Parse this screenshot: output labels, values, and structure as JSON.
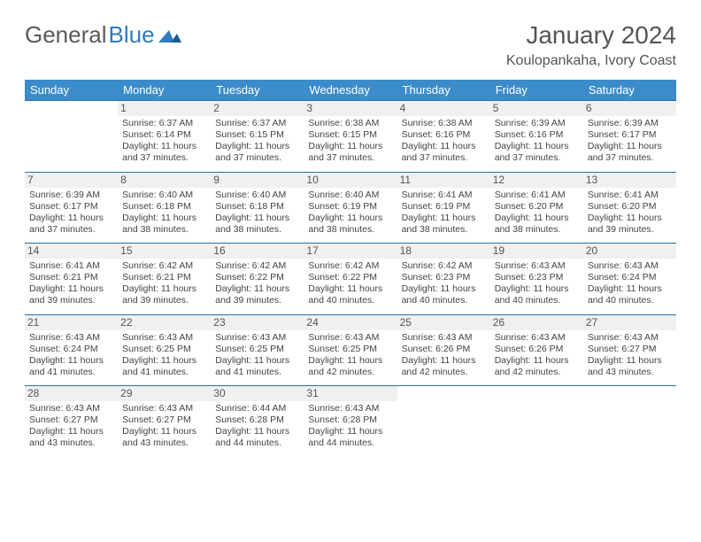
{
  "logo": {
    "text1": "General",
    "text2": "Blue"
  },
  "header": {
    "month": "January 2024",
    "location": "Koulopankaha, Ivory Coast"
  },
  "colors": {
    "header_bg": "#3b8ccb",
    "header_text": "#ffffff",
    "row_border": "#2f6fa8",
    "daynum_bg": "#eef0f1",
    "logo_gray": "#5a5a5a",
    "logo_blue": "#2f7cc0"
  },
  "daysOfWeek": [
    "Sunday",
    "Monday",
    "Tuesday",
    "Wednesday",
    "Thursday",
    "Friday",
    "Saturday"
  ],
  "weeks": [
    [
      null,
      {
        "n": "1",
        "sr": "6:37 AM",
        "ss": "6:14 PM",
        "dl": "11 hours and 37 minutes."
      },
      {
        "n": "2",
        "sr": "6:37 AM",
        "ss": "6:15 PM",
        "dl": "11 hours and 37 minutes."
      },
      {
        "n": "3",
        "sr": "6:38 AM",
        "ss": "6:15 PM",
        "dl": "11 hours and 37 minutes."
      },
      {
        "n": "4",
        "sr": "6:38 AM",
        "ss": "6:16 PM",
        "dl": "11 hours and 37 minutes."
      },
      {
        "n": "5",
        "sr": "6:39 AM",
        "ss": "6:16 PM",
        "dl": "11 hours and 37 minutes."
      },
      {
        "n": "6",
        "sr": "6:39 AM",
        "ss": "6:17 PM",
        "dl": "11 hours and 37 minutes."
      }
    ],
    [
      {
        "n": "7",
        "sr": "6:39 AM",
        "ss": "6:17 PM",
        "dl": "11 hours and 37 minutes."
      },
      {
        "n": "8",
        "sr": "6:40 AM",
        "ss": "6:18 PM",
        "dl": "11 hours and 38 minutes."
      },
      {
        "n": "9",
        "sr": "6:40 AM",
        "ss": "6:18 PM",
        "dl": "11 hours and 38 minutes."
      },
      {
        "n": "10",
        "sr": "6:40 AM",
        "ss": "6:19 PM",
        "dl": "11 hours and 38 minutes."
      },
      {
        "n": "11",
        "sr": "6:41 AM",
        "ss": "6:19 PM",
        "dl": "11 hours and 38 minutes."
      },
      {
        "n": "12",
        "sr": "6:41 AM",
        "ss": "6:20 PM",
        "dl": "11 hours and 38 minutes."
      },
      {
        "n": "13",
        "sr": "6:41 AM",
        "ss": "6:20 PM",
        "dl": "11 hours and 39 minutes."
      }
    ],
    [
      {
        "n": "14",
        "sr": "6:41 AM",
        "ss": "6:21 PM",
        "dl": "11 hours and 39 minutes."
      },
      {
        "n": "15",
        "sr": "6:42 AM",
        "ss": "6:21 PM",
        "dl": "11 hours and 39 minutes."
      },
      {
        "n": "16",
        "sr": "6:42 AM",
        "ss": "6:22 PM",
        "dl": "11 hours and 39 minutes."
      },
      {
        "n": "17",
        "sr": "6:42 AM",
        "ss": "6:22 PM",
        "dl": "11 hours and 40 minutes."
      },
      {
        "n": "18",
        "sr": "6:42 AM",
        "ss": "6:23 PM",
        "dl": "11 hours and 40 minutes."
      },
      {
        "n": "19",
        "sr": "6:43 AM",
        "ss": "6:23 PM",
        "dl": "11 hours and 40 minutes."
      },
      {
        "n": "20",
        "sr": "6:43 AM",
        "ss": "6:24 PM",
        "dl": "11 hours and 40 minutes."
      }
    ],
    [
      {
        "n": "21",
        "sr": "6:43 AM",
        "ss": "6:24 PM",
        "dl": "11 hours and 41 minutes."
      },
      {
        "n": "22",
        "sr": "6:43 AM",
        "ss": "6:25 PM",
        "dl": "11 hours and 41 minutes."
      },
      {
        "n": "23",
        "sr": "6:43 AM",
        "ss": "6:25 PM",
        "dl": "11 hours and 41 minutes."
      },
      {
        "n": "24",
        "sr": "6:43 AM",
        "ss": "6:25 PM",
        "dl": "11 hours and 42 minutes."
      },
      {
        "n": "25",
        "sr": "6:43 AM",
        "ss": "6:26 PM",
        "dl": "11 hours and 42 minutes."
      },
      {
        "n": "26",
        "sr": "6:43 AM",
        "ss": "6:26 PM",
        "dl": "11 hours and 42 minutes."
      },
      {
        "n": "27",
        "sr": "6:43 AM",
        "ss": "6:27 PM",
        "dl": "11 hours and 43 minutes."
      }
    ],
    [
      {
        "n": "28",
        "sr": "6:43 AM",
        "ss": "6:27 PM",
        "dl": "11 hours and 43 minutes."
      },
      {
        "n": "29",
        "sr": "6:43 AM",
        "ss": "6:27 PM",
        "dl": "11 hours and 43 minutes."
      },
      {
        "n": "30",
        "sr": "6:44 AM",
        "ss": "6:28 PM",
        "dl": "11 hours and 44 minutes."
      },
      {
        "n": "31",
        "sr": "6:43 AM",
        "ss": "6:28 PM",
        "dl": "11 hours and 44 minutes."
      },
      null,
      null,
      null
    ]
  ],
  "labels": {
    "sunrise": "Sunrise:",
    "sunset": "Sunset:",
    "daylight": "Daylight:"
  }
}
